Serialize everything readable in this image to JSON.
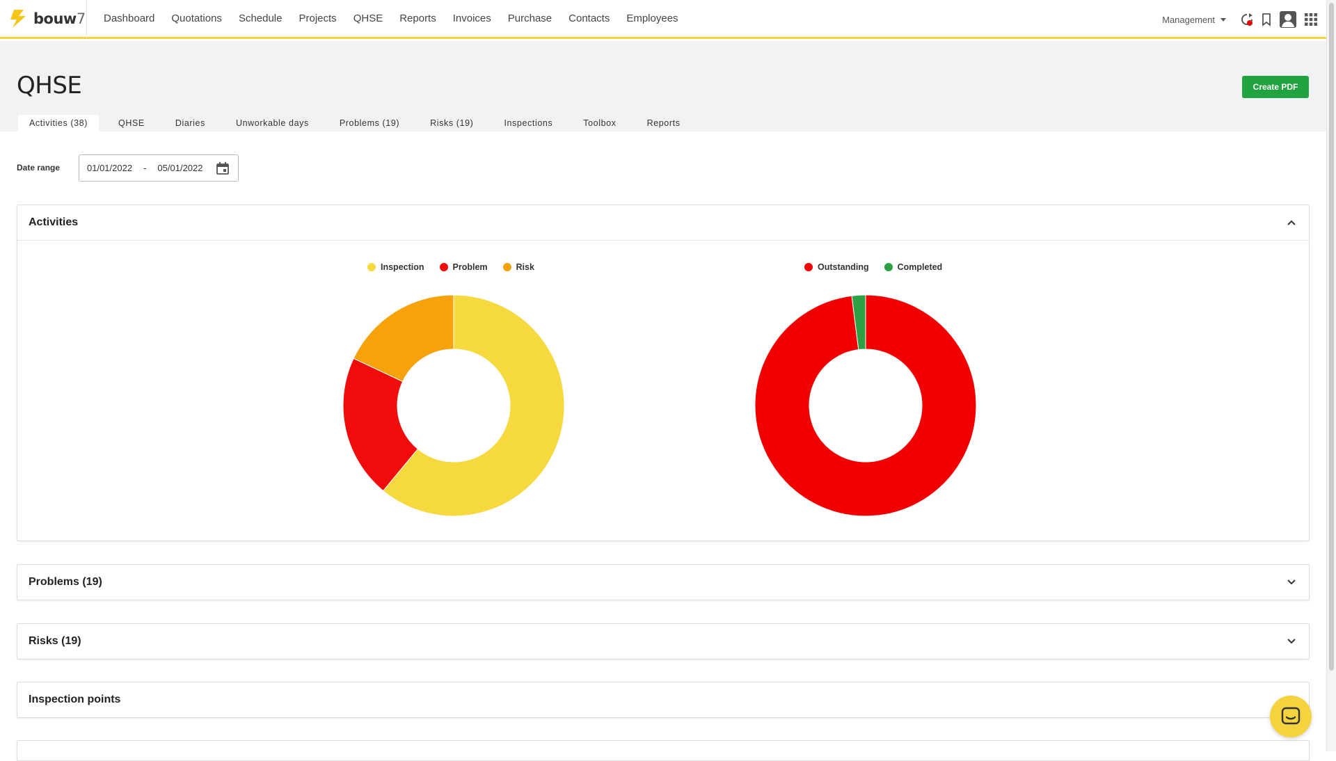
{
  "brand": {
    "name_bold": "bouw",
    "name_suffix": "7",
    "accent": "#f5d33e"
  },
  "nav": {
    "items": [
      {
        "label": "Dashboard"
      },
      {
        "label": "Quotations"
      },
      {
        "label": "Schedule"
      },
      {
        "label": "Projects"
      },
      {
        "label": "QHSE"
      },
      {
        "label": "Reports"
      },
      {
        "label": "Invoices"
      },
      {
        "label": "Purchase"
      },
      {
        "label": "Contacts"
      },
      {
        "label": "Employees"
      }
    ],
    "role": "Management",
    "icons": [
      "sync-notification-icon",
      "bookmark-icon",
      "user-avatar-icon",
      "apps-grid-icon"
    ]
  },
  "page": {
    "title": "QHSE",
    "create_pdf": "Create PDF",
    "tabs": [
      {
        "label": "Activities (38)",
        "active": true
      },
      {
        "label": "QHSE"
      },
      {
        "label": "Diaries"
      },
      {
        "label": "Unworkable days"
      },
      {
        "label": "Problems (19)"
      },
      {
        "label": "Risks (19)"
      },
      {
        "label": "Inspections"
      },
      {
        "label": "Toolbox"
      },
      {
        "label": "Reports"
      }
    ]
  },
  "filters": {
    "date_label": "Date range",
    "date_from": "01/01/2022",
    "date_sep": "-",
    "date_to": "05/01/2022"
  },
  "panels": {
    "activities": {
      "title": "Activities",
      "expanded": true
    },
    "problems": {
      "title": "Problems (19)"
    },
    "risks": {
      "title": "Risks (19)"
    },
    "inspection_points": {
      "title": "Inspection points"
    }
  },
  "chart_data": [
    {
      "type": "pie",
      "donut": true,
      "legend_position": "top",
      "categories": [
        "Inspection",
        "Problem",
        "Risk"
      ],
      "values": [
        61,
        21,
        18
      ],
      "colors": [
        "#f5d93f",
        "#f10c0c",
        "#f6a20b"
      ]
    },
    {
      "type": "pie",
      "donut": true,
      "legend_position": "top",
      "categories": [
        "Outstanding",
        "Completed"
      ],
      "values": [
        98,
        2
      ],
      "colors": [
        "#f10000",
        "#2ea043"
      ]
    }
  ]
}
